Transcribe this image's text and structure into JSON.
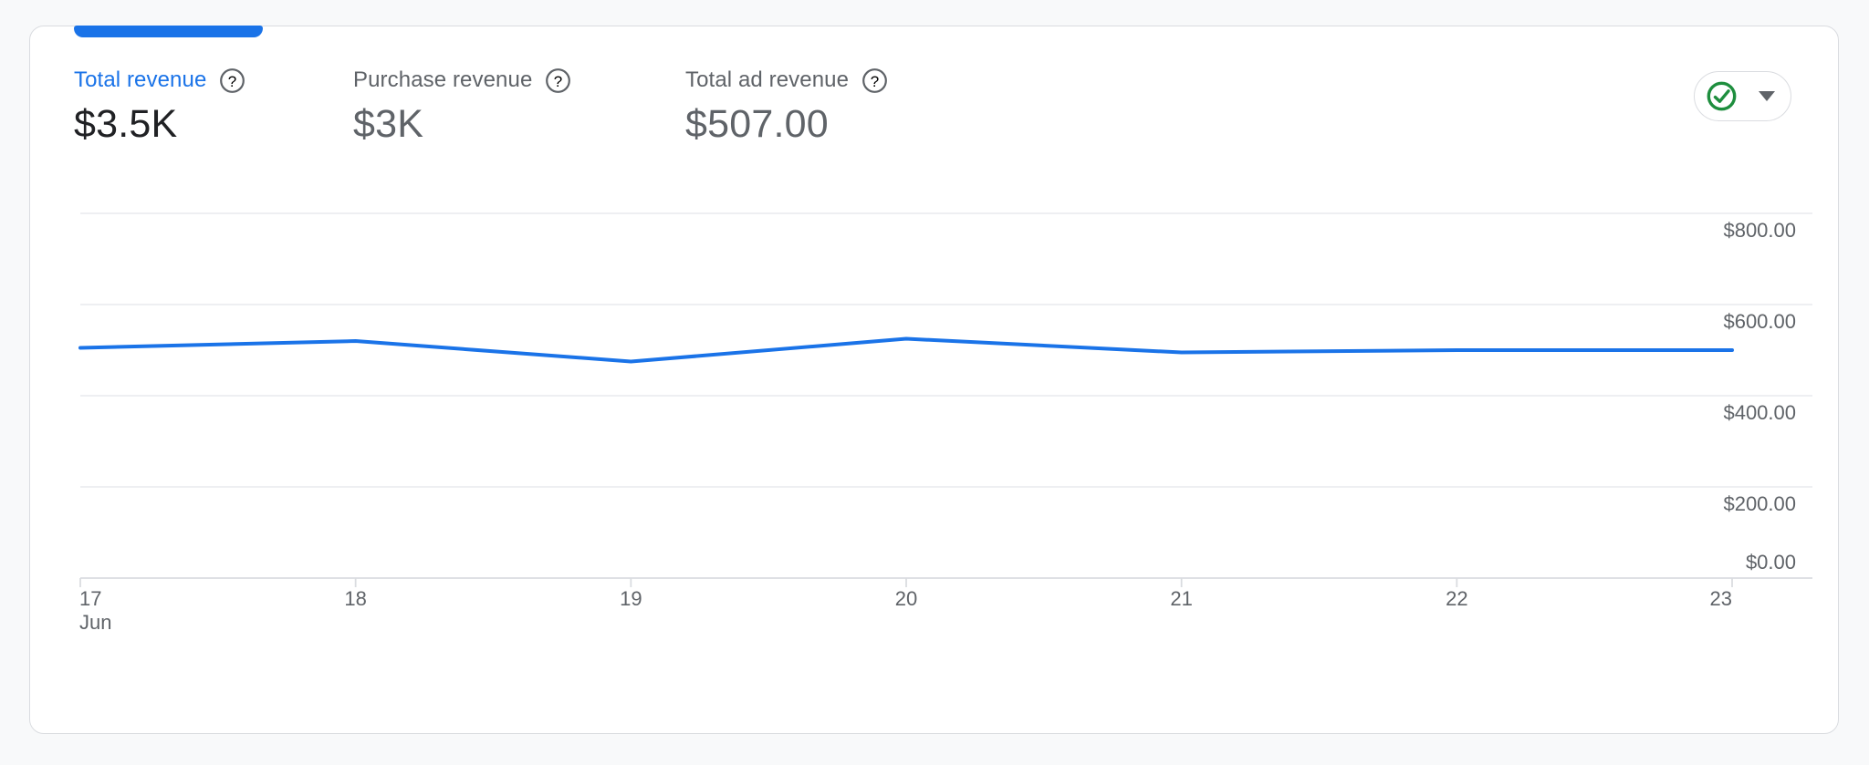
{
  "card": {
    "metrics": [
      {
        "label": "Total revenue",
        "value": "$3.5K",
        "selected": true
      },
      {
        "label": "Purchase revenue",
        "value": "$3K",
        "selected": false
      },
      {
        "label": "Total ad revenue",
        "value": "$507.00",
        "selected": false
      }
    ],
    "status_button": {
      "icon": "check-circle",
      "caret_icon": "caret-down"
    }
  },
  "icons": {
    "help_glyph": "?"
  },
  "colors": {
    "accent_blue": "#1a73e8",
    "value_dark": "#202124",
    "text_gray": "#5f6368",
    "gridline": "#e8eaed",
    "axis_line": "#dadce0",
    "check_green": "#1e8e3e",
    "card_border": "#dadce0",
    "card_bg": "#ffffff",
    "page_bg": "#f8f9fa"
  },
  "chart_data": {
    "type": "line",
    "x": [
      "17",
      "18",
      "19",
      "20",
      "21",
      "22",
      "23"
    ],
    "x_axis_sublabel": "Jun",
    "series": [
      {
        "name": "Total revenue",
        "color": "#1a73e8",
        "values": [
          505,
          520,
          475,
          525,
          495,
          500,
          500
        ]
      }
    ],
    "y_ticks": [
      {
        "label": "$0.00",
        "value": 0
      },
      {
        "label": "$200.00",
        "value": 200
      },
      {
        "label": "$400.00",
        "value": 400
      },
      {
        "label": "$600.00",
        "value": 600
      },
      {
        "label": "$800.00",
        "value": 800
      }
    ],
    "ylim": [
      0,
      800
    ],
    "grid": true,
    "legend": "none",
    "y_axis_side": "right",
    "title": ""
  }
}
